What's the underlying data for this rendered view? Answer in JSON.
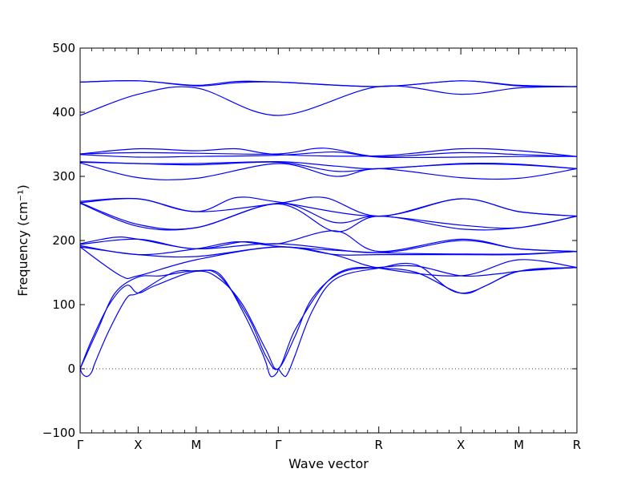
{
  "chart_data": {
    "type": "line",
    "title": "",
    "xlabel": "Wave vector",
    "ylabel": "Frequency (cm⁻¹)",
    "ylim": [
      -100,
      500
    ],
    "yticks": [
      -100,
      0,
      100,
      200,
      300,
      400,
      500
    ],
    "xticks": [
      {
        "label": "Γ",
        "x": 0.0
      },
      {
        "label": "X",
        "x": 0.5
      },
      {
        "label": "M",
        "x": 1.0
      },
      {
        "label": "Γ",
        "x": 1.707
      },
      {
        "label": "R",
        "x": 2.573
      },
      {
        "label": "X",
        "x": 3.28
      },
      {
        "label": "M",
        "x": 3.78
      },
      {
        "label": "R",
        "x": 4.28
      }
    ],
    "xlim": [
      0,
      4.28
    ],
    "zero_line": "dotted",
    "line_color": "#0000ff",
    "series": [
      {
        "values": [
          [
            0,
            447
          ],
          [
            0.5,
            449
          ],
          [
            1.0,
            441
          ],
          [
            1.35,
            446
          ],
          [
            1.707,
            447
          ],
          [
            2.573,
            440
          ],
          [
            3.28,
            449
          ],
          [
            3.78,
            441
          ],
          [
            4.28,
            440
          ]
        ]
      },
      {
        "values": [
          [
            0,
            447
          ],
          [
            0.5,
            449
          ],
          [
            1.0,
            442
          ],
          [
            1.35,
            448
          ],
          [
            1.707,
            447
          ],
          [
            2.573,
            440
          ],
          [
            3.28,
            449
          ],
          [
            3.78,
            442
          ],
          [
            4.28,
            440
          ]
        ]
      },
      {
        "values": [
          [
            0,
            395
          ],
          [
            0.5,
            428
          ],
          [
            1.0,
            438
          ],
          [
            1.707,
            395
          ],
          [
            2.573,
            440
          ],
          [
            3.28,
            428
          ],
          [
            3.78,
            438
          ],
          [
            4.28,
            440
          ]
        ]
      },
      {
        "values": [
          [
            0,
            335
          ],
          [
            0.5,
            343
          ],
          [
            1.0,
            340
          ],
          [
            1.35,
            343
          ],
          [
            1.707,
            334
          ],
          [
            2.573,
            332
          ],
          [
            3.28,
            343
          ],
          [
            3.78,
            340
          ],
          [
            4.28,
            331
          ]
        ]
      },
      {
        "values": [
          [
            0,
            335
          ],
          [
            0.5,
            337
          ],
          [
            1.0,
            336
          ],
          [
            1.707,
            335
          ],
          [
            2.1,
            344
          ],
          [
            2.573,
            331
          ],
          [
            3.28,
            337
          ],
          [
            3.78,
            334
          ],
          [
            4.28,
            331
          ]
        ]
      },
      {
        "values": [
          [
            0,
            334
          ],
          [
            0.5,
            330
          ],
          [
            1.0,
            331
          ],
          [
            1.707,
            333
          ],
          [
            2.2,
            338
          ],
          [
            2.573,
            330
          ],
          [
            3.28,
            330
          ],
          [
            3.78,
            331
          ],
          [
            4.28,
            331
          ]
        ]
      },
      {
        "values": [
          [
            0,
            323
          ],
          [
            0.5,
            320
          ],
          [
            1.0,
            320
          ],
          [
            1.707,
            323
          ],
          [
            2.2,
            316
          ],
          [
            2.573,
            312
          ],
          [
            3.28,
            320
          ],
          [
            3.78,
            319
          ],
          [
            4.28,
            312
          ]
        ]
      },
      {
        "values": [
          [
            0,
            322
          ],
          [
            0.5,
            320
          ],
          [
            1.0,
            318
          ],
          [
            1.707,
            322
          ],
          [
            2.2,
            308
          ],
          [
            2.573,
            312
          ],
          [
            3.28,
            319
          ],
          [
            3.78,
            318
          ],
          [
            4.28,
            312
          ]
        ]
      },
      {
        "values": [
          [
            0,
            321
          ],
          [
            0.5,
            298
          ],
          [
            1.0,
            297
          ],
          [
            1.707,
            320
          ],
          [
            2.2,
            300
          ],
          [
            2.573,
            312
          ],
          [
            3.28,
            298
          ],
          [
            3.78,
            297
          ],
          [
            4.28,
            312
          ]
        ]
      },
      {
        "values": [
          [
            0,
            261
          ],
          [
            0.5,
            265
          ],
          [
            1.0,
            245
          ],
          [
            1.35,
            267
          ],
          [
            1.707,
            260
          ],
          [
            2.573,
            238
          ],
          [
            3.28,
            265
          ],
          [
            3.78,
            245
          ],
          [
            4.28,
            238
          ]
        ]
      },
      {
        "values": [
          [
            0,
            259
          ],
          [
            0.5,
            265
          ],
          [
            1.0,
            245
          ],
          [
            1.707,
            258
          ],
          [
            2.1,
            267
          ],
          [
            2.573,
            238
          ],
          [
            3.28,
            265
          ],
          [
            3.78,
            245
          ],
          [
            4.28,
            238
          ]
        ]
      },
      {
        "values": [
          [
            0,
            259
          ],
          [
            0.5,
            225
          ],
          [
            1.0,
            220
          ],
          [
            1.707,
            258
          ],
          [
            2.2,
            228
          ],
          [
            2.573,
            238
          ],
          [
            3.28,
            224
          ],
          [
            3.78,
            220
          ],
          [
            4.28,
            238
          ]
        ]
      },
      {
        "values": [
          [
            0,
            258
          ],
          [
            0.5,
            222
          ],
          [
            1.0,
            220
          ],
          [
            1.707,
            257
          ],
          [
            2.2,
            214
          ],
          [
            2.573,
            238
          ],
          [
            3.28,
            218
          ],
          [
            3.78,
            220
          ],
          [
            4.28,
            238
          ]
        ]
      },
      {
        "values": [
          [
            0,
            195
          ],
          [
            0.3,
            205
          ],
          [
            0.5,
            202
          ],
          [
            1.0,
            187
          ],
          [
            1.4,
            198
          ],
          [
            1.707,
            195
          ],
          [
            2.2,
            215
          ],
          [
            2.573,
            183
          ],
          [
            3.28,
            202
          ],
          [
            3.78,
            187
          ],
          [
            4.28,
            183
          ]
        ]
      },
      {
        "values": [
          [
            0,
            194
          ],
          [
            0.5,
            202
          ],
          [
            1.0,
            187
          ],
          [
            1.707,
            195
          ],
          [
            2.573,
            181
          ],
          [
            3.28,
            200
          ],
          [
            3.78,
            187
          ],
          [
            4.28,
            183
          ]
        ]
      },
      {
        "values": [
          [
            0,
            192
          ],
          [
            0.5,
            178
          ],
          [
            1.0,
            187
          ],
          [
            1.35,
            198
          ],
          [
            1.707,
            191
          ],
          [
            2.573,
            181
          ],
          [
            3.28,
            179
          ],
          [
            3.78,
            179
          ],
          [
            4.28,
            183
          ]
        ]
      },
      {
        "values": [
          [
            0,
            190
          ],
          [
            0.5,
            178
          ],
          [
            1.0,
            175
          ],
          [
            1.707,
            190
          ],
          [
            2.2,
            178
          ],
          [
            2.573,
            178
          ],
          [
            3.28,
            178
          ],
          [
            3.78,
            178
          ],
          [
            4.28,
            183
          ]
        ]
      },
      {
        "values": [
          [
            0,
            190
          ],
          [
            0.35,
            145
          ],
          [
            0.5,
            145
          ],
          [
            1.0,
            170
          ],
          [
            1.707,
            190
          ],
          [
            2.2,
            177
          ],
          [
            2.573,
            157
          ],
          [
            3.28,
            145
          ],
          [
            3.78,
            170
          ],
          [
            4.28,
            158
          ]
        ]
      },
      {
        "values": [
          [
            0,
            0
          ],
          [
            0.1,
            45
          ],
          [
            0.25,
            100
          ],
          [
            0.4,
            130
          ],
          [
            0.5,
            118
          ],
          [
            0.65,
            130
          ],
          [
            1.0,
            152
          ],
          [
            1.2,
            140
          ],
          [
            1.4,
            100
          ],
          [
            1.6,
            30
          ],
          [
            1.707,
            0
          ],
          [
            1.85,
            60
          ],
          [
            2.1,
            130
          ],
          [
            2.3,
            155
          ],
          [
            2.573,
            157
          ],
          [
            2.9,
            150
          ],
          [
            3.28,
            118
          ],
          [
            3.5,
            130
          ],
          [
            3.78,
            152
          ],
          [
            4.28,
            158
          ]
        ]
      },
      {
        "values": [
          [
            0,
            0
          ],
          [
            0.15,
            60
          ],
          [
            0.3,
            118
          ],
          [
            0.5,
            143
          ],
          [
            0.7,
            145
          ],
          [
            1.0,
            153
          ],
          [
            1.2,
            145
          ],
          [
            1.45,
            80
          ],
          [
            1.6,
            20
          ],
          [
            1.707,
            0
          ],
          [
            1.85,
            50
          ],
          [
            2.0,
            110
          ],
          [
            2.25,
            150
          ],
          [
            2.573,
            158
          ],
          [
            2.9,
            160
          ],
          [
            3.28,
            145
          ],
          [
            3.6,
            148
          ],
          [
            3.78,
            152
          ],
          [
            4.28,
            158
          ]
        ]
      },
      {
        "values": [
          [
            0.0,
            0
          ],
          [
            0.02,
            -8
          ],
          [
            0.06,
            -12
          ],
          [
            0.1,
            -5
          ],
          [
            0.13,
            10
          ],
          [
            0.25,
            60
          ],
          [
            0.4,
            110
          ],
          [
            0.5,
            118
          ],
          [
            0.8,
            150
          ],
          [
            1.0,
            152
          ],
          [
            1.2,
            148
          ],
          [
            1.4,
            90
          ],
          [
            1.58,
            20
          ],
          [
            1.63,
            -8
          ],
          [
            1.66,
            -12
          ],
          [
            1.7,
            -5
          ],
          [
            1.707,
            0
          ],
          [
            1.74,
            -8
          ],
          [
            1.77,
            -12
          ],
          [
            1.8,
            -3
          ],
          [
            1.85,
            20
          ],
          [
            2.0,
            90
          ],
          [
            2.2,
            140
          ],
          [
            2.573,
            157
          ],
          [
            2.9,
            162
          ],
          [
            3.28,
            118
          ],
          [
            3.78,
            152
          ],
          [
            4.28,
            158
          ]
        ]
      }
    ]
  }
}
